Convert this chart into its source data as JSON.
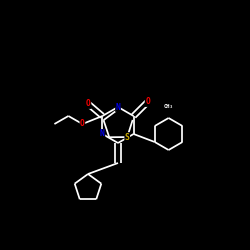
{
  "background_color": "#000000",
  "bond_color": "#ffffff",
  "atom_colors": {
    "N": "#0000ee",
    "O": "#ff0000",
    "S": "#ccaa00",
    "C": "#ffffff"
  },
  "fig_width": 2.5,
  "fig_height": 2.5,
  "dpi": 100,
  "lw": 1.25,
  "fs": 5.8
}
